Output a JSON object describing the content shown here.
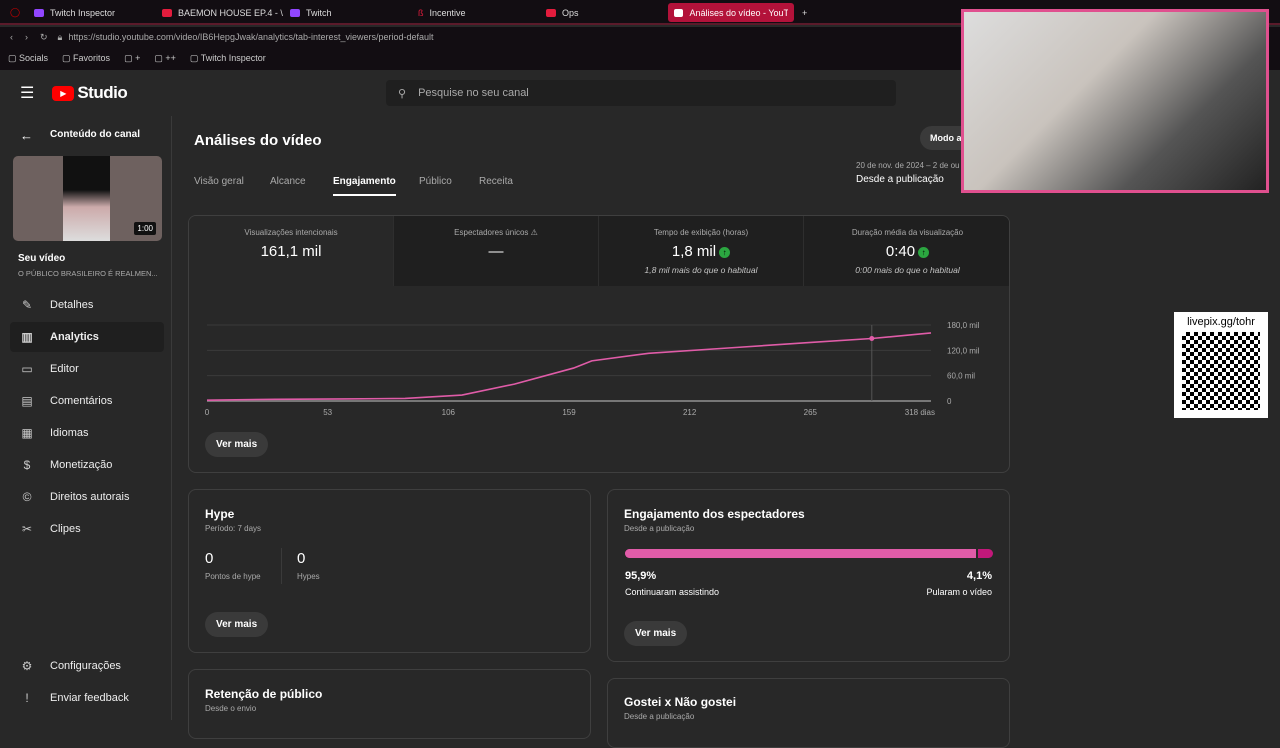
{
  "browser": {
    "tabs": [
      {
        "label": "Twitch Inspector"
      },
      {
        "label": "BAEMON HOUSE EP.4 - \\"
      },
      {
        "label": "Twitch"
      },
      {
        "label": "Incentive"
      },
      {
        "label": "Ops"
      },
      {
        "label": "Análises do vídeo - YouTu"
      }
    ],
    "url": "https://studio.youtube.com/video/IB6HepgJwak/analytics/tab-interest_viewers/period-default",
    "bookmarks": [
      "Socials",
      "Favoritos",
      "+",
      "++",
      "Twitch Inspector"
    ]
  },
  "header": {
    "logo": "Studio",
    "search_placeholder": "Pesquise no seu canal"
  },
  "sidebar": {
    "back_label": "Conteúdo do canal",
    "duration": "1:00",
    "video_label": "Seu vídeo",
    "video_title": "O PÚBLICO BRASILEIRO É REALMEN...",
    "items": [
      {
        "label": "Detalhes",
        "icon": "pencil-icon"
      },
      {
        "label": "Analytics",
        "icon": "analytics-icon"
      },
      {
        "label": "Editor",
        "icon": "editor-icon"
      },
      {
        "label": "Comentários",
        "icon": "comments-icon"
      },
      {
        "label": "Idiomas",
        "icon": "languages-icon"
      },
      {
        "label": "Monetização",
        "icon": "money-icon"
      },
      {
        "label": "Direitos autorais",
        "icon": "copyright-icon"
      },
      {
        "label": "Clipes",
        "icon": "scissors-icon"
      }
    ],
    "settings": "Configurações",
    "feedback": "Enviar feedback"
  },
  "main": {
    "title": "Análises do vídeo",
    "mode_button": "Modo a",
    "tabs": [
      "Visão geral",
      "Alcance",
      "Engajamento",
      "Público",
      "Receita"
    ],
    "date_range": "20 de nov. de 2024 – 2 de ou",
    "period": "Desde a publicação",
    "metrics": [
      {
        "label": "Visualizações intencionais",
        "value": "161,1 mil",
        "sub": ""
      },
      {
        "label": "Espectadores únicos",
        "value": "—",
        "sub": ""
      },
      {
        "label": "Tempo de exibição (horas)",
        "value": "1,8 mil",
        "sub": "1,8 mil mais do que o habitual"
      },
      {
        "label": "Duração média da visualização",
        "value": "0:40",
        "sub": "0:00 mais do que o habitual"
      }
    ],
    "see_more": "Ver mais",
    "hype": {
      "title": "Hype",
      "period": "Período: 7 days",
      "points": "0",
      "points_label": "Pontos de hype",
      "hypes": "0",
      "hypes_label": "Hypes"
    },
    "engagement": {
      "title": "Engajamento dos espectadores",
      "period": "Desde a publicação",
      "continued_pct": 95.9,
      "continued": "95,9%",
      "continued_label": "Continuaram assistindo",
      "skipped": "4,1%",
      "skipped_label": "Pularam o vídeo"
    },
    "retention": {
      "title": "Retenção de público",
      "period": "Desde o envio"
    },
    "likes": {
      "title": "Gostei x Não gostei",
      "period": "Desde a publicação"
    }
  },
  "overlay": {
    "qr_text": "livepix.gg/tohr"
  },
  "colors": {
    "accent": "#e05ca8",
    "positive": "#2ba640"
  },
  "chart_data": {
    "type": "line",
    "x": [
      0,
      30,
      60,
      87,
      112,
      135,
      161,
      169,
      194,
      233,
      266,
      292,
      318
    ],
    "y": [
      2000,
      4000,
      5000,
      6000,
      14000,
      40000,
      78000,
      95000,
      113000,
      127000,
      139000,
      148000,
      161100
    ],
    "xticks": [
      "0",
      "53",
      "106",
      "159",
      "212",
      "265",
      "318 dias"
    ],
    "xtick_values": [
      0,
      53,
      106,
      159,
      212,
      265,
      318
    ],
    "yticks": [
      "0",
      "60,0 mil",
      "120,0 mil",
      "180,0 mil"
    ],
    "ytick_values": [
      0,
      60000,
      120000,
      180000
    ],
    "xlim": [
      0,
      318
    ],
    "ylim": [
      0,
      180000
    ],
    "hover_x": 292
  }
}
